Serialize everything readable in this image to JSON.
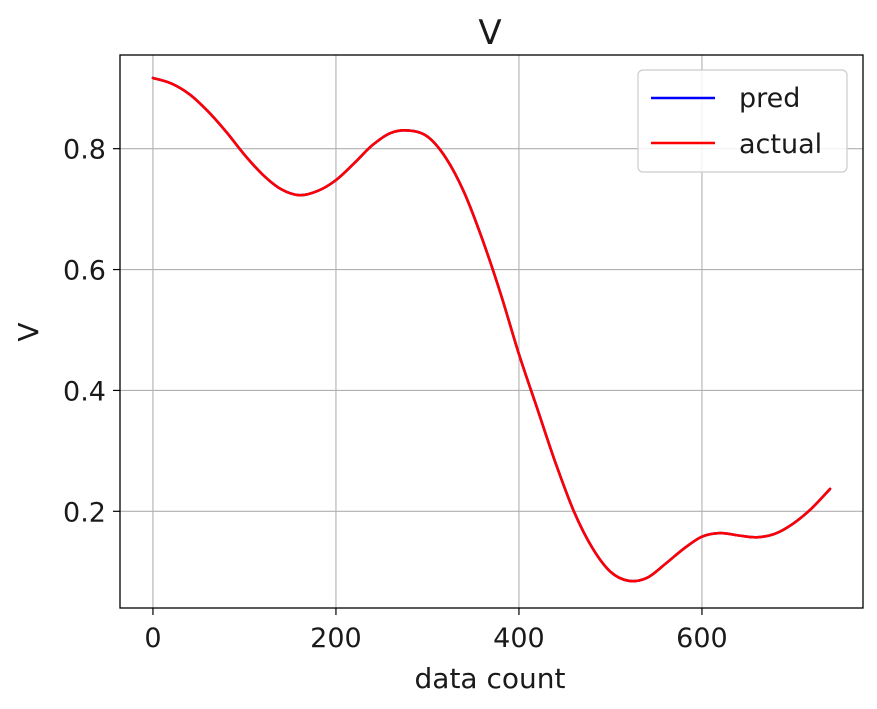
{
  "chart_data": {
    "type": "line",
    "title": "V",
    "xlabel": "data count",
    "ylabel": "V",
    "xlim": [
      -36,
      776
    ],
    "ylim": [
      0.04,
      0.955
    ],
    "xticks": [
      0,
      200,
      400,
      600
    ],
    "xtick_labels": [
      "0",
      "200",
      "400",
      "600"
    ],
    "yticks": [
      0.2,
      0.4,
      0.6,
      0.8
    ],
    "ytick_labels": [
      "0.2",
      "0.4",
      "0.6",
      "0.8"
    ],
    "grid": true,
    "legend_position": "top-right",
    "series": [
      {
        "name": "pred",
        "color": "#0000ff",
        "x": [
          0,
          20,
          40,
          60,
          80,
          100,
          120,
          140,
          160,
          180,
          200,
          220,
          240,
          260,
          280,
          300,
          320,
          340,
          360,
          380,
          400,
          420,
          440,
          460,
          480,
          500,
          520,
          540,
          560,
          580,
          600,
          620,
          640,
          660,
          680,
          700,
          720,
          740
        ],
        "values": [
          0.917,
          0.908,
          0.89,
          0.862,
          0.828,
          0.79,
          0.757,
          0.733,
          0.723,
          0.73,
          0.748,
          0.776,
          0.806,
          0.826,
          0.83,
          0.82,
          0.785,
          0.728,
          0.65,
          0.56,
          0.46,
          0.37,
          0.28,
          0.2,
          0.14,
          0.1,
          0.085,
          0.09,
          0.113,
          0.138,
          0.158,
          0.164,
          0.16,
          0.157,
          0.163,
          0.18,
          0.205,
          0.237
        ]
      },
      {
        "name": "actual",
        "color": "#ff0000",
        "x": [
          0,
          20,
          40,
          60,
          80,
          100,
          120,
          140,
          160,
          180,
          200,
          220,
          240,
          260,
          280,
          300,
          320,
          340,
          360,
          380,
          400,
          420,
          440,
          460,
          480,
          500,
          520,
          540,
          560,
          580,
          600,
          620,
          640,
          660,
          680,
          700,
          720,
          740
        ],
        "values": [
          0.917,
          0.908,
          0.89,
          0.862,
          0.828,
          0.79,
          0.757,
          0.733,
          0.723,
          0.73,
          0.748,
          0.776,
          0.806,
          0.826,
          0.83,
          0.82,
          0.785,
          0.728,
          0.65,
          0.56,
          0.46,
          0.37,
          0.28,
          0.2,
          0.14,
          0.1,
          0.085,
          0.09,
          0.113,
          0.138,
          0.158,
          0.164,
          0.16,
          0.157,
          0.163,
          0.18,
          0.205,
          0.237
        ]
      }
    ]
  }
}
